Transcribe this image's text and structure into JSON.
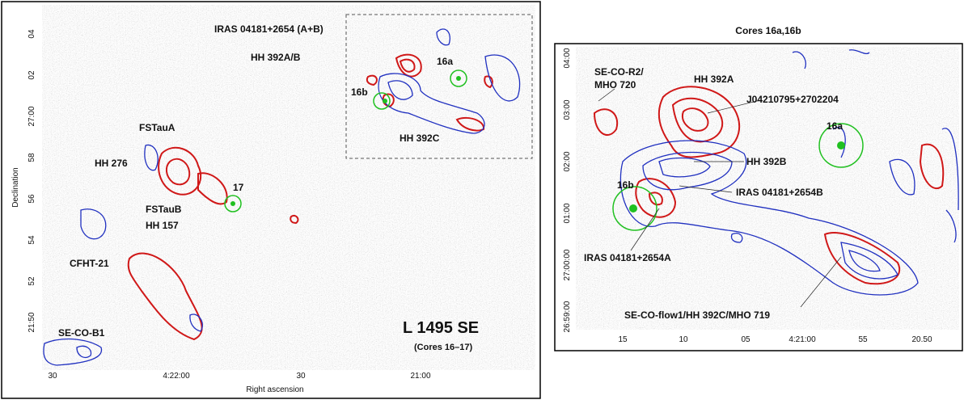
{
  "left": {
    "title": "L 1495 SE",
    "subtitle": "(Cores 16–17)",
    "x_axis_label": "Right ascension",
    "y_axis_label": "Declination",
    "xticks": [
      "30",
      "4:22:00",
      "30",
      "21:00"
    ],
    "yticks": [
      "04",
      "02",
      "27:00",
      "58",
      "56",
      "54",
      "52",
      "21:50"
    ],
    "labels": [
      "IRAS 04181+2654 (A+B)",
      "HH 392A/B",
      "16a",
      "16b",
      "HH 392C",
      "FSTauA",
      "HH 276",
      "17",
      "FSTauB",
      "HH 157",
      "CFHT-21",
      "SE-CO-B1"
    ]
  },
  "right": {
    "title": "Cores 16a,16b",
    "xticks": [
      "15",
      "10",
      "05",
      "4:21:00",
      "55",
      "20.50"
    ],
    "yticks": [
      "04:00",
      "03:00",
      "02:00",
      "01:00",
      "27:00:00",
      "26:59:00"
    ],
    "labels": [
      "SE-CO-R2/",
      "MHO 720",
      "HH 392A",
      "J04210795+2702204",
      "16a",
      "HH 392B",
      "IRAS 04181+2654B",
      "16b",
      "IRAS 04181+2654A",
      "SE-CO-flow1/HH 392C/MHO 719"
    ]
  }
}
